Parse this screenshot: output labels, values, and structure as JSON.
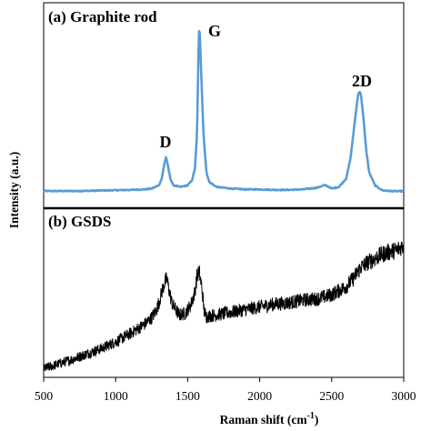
{
  "chart_data": [
    {
      "type": "line",
      "panel": "a",
      "title": "(a) Graphite rod",
      "xlabel": "Raman shift (cm",
      "xlabel_superscript": "-1",
      "xlabel_suffix": ")",
      "ylabel": "Intensity (a.u.)",
      "xlim": [
        500,
        3000
      ],
      "xticks": [
        "500",
        "1000",
        "1500",
        "2000",
        "2500",
        "3000"
      ],
      "y_ticks_shown": false,
      "color": "#5b9bd5",
      "peaks": [
        {
          "label": "D",
          "x": 1350,
          "height": 0.21
        },
        {
          "label": "G",
          "x": 1580,
          "height": 1.0
        },
        {
          "label": "2D",
          "x": 2690,
          "height": 0.61
        }
      ],
      "series": [
        {
          "x": [
            500,
            600,
            700,
            800,
            900,
            1000,
            1100,
            1200,
            1250,
            1300,
            1320,
            1340,
            1350,
            1360,
            1380,
            1400,
            1450,
            1500,
            1530,
            1550,
            1565,
            1575,
            1580,
            1585,
            1595,
            1610,
            1630,
            1650,
            1700,
            1800,
            1900,
            2000,
            2100,
            2200,
            2300,
            2400,
            2430,
            2450,
            2470,
            2500,
            2550,
            2600,
            2630,
            2650,
            2670,
            2685,
            2695,
            2705,
            2720,
            2740,
            2760,
            2800,
            2850,
            2900,
            2950,
            3000
          ],
          "y": [
            0.005,
            0.005,
            0.005,
            0.006,
            0.008,
            0.01,
            0.012,
            0.015,
            0.02,
            0.04,
            0.08,
            0.18,
            0.21,
            0.17,
            0.08,
            0.04,
            0.03,
            0.04,
            0.07,
            0.14,
            0.35,
            0.85,
            1.0,
            0.95,
            0.7,
            0.35,
            0.12,
            0.06,
            0.03,
            0.02,
            0.015,
            0.015,
            0.012,
            0.012,
            0.015,
            0.025,
            0.035,
            0.04,
            0.035,
            0.02,
            0.03,
            0.08,
            0.2,
            0.35,
            0.5,
            0.6,
            0.61,
            0.58,
            0.45,
            0.25,
            0.12,
            0.04,
            0.01,
            0.005,
            0.004,
            0.004
          ]
        }
      ]
    },
    {
      "type": "line",
      "panel": "b",
      "title": "(b) GSDS",
      "xlim": [
        500,
        3000
      ],
      "color": "#000000",
      "series": [
        {
          "x": [
            500,
            700,
            900,
            1000,
            1100,
            1200,
            1250,
            1280,
            1300,
            1320,
            1340,
            1355,
            1370,
            1390,
            1410,
            1440,
            1480,
            1520,
            1550,
            1565,
            1580,
            1600,
            1615,
            1630,
            1700,
            1800,
            1900,
            2000,
            2100,
            2200,
            2300,
            2400,
            2500,
            2550,
            2600,
            2650,
            2700,
            2750,
            2800,
            2850,
            2900,
            2950,
            3000
          ],
          "y": [
            0.03,
            0.1,
            0.18,
            0.23,
            0.29,
            0.36,
            0.41,
            0.46,
            0.52,
            0.6,
            0.67,
            0.7,
            0.62,
            0.52,
            0.48,
            0.43,
            0.44,
            0.5,
            0.6,
            0.72,
            0.75,
            0.62,
            0.45,
            0.42,
            0.43,
            0.45,
            0.47,
            0.49,
            0.51,
            0.52,
            0.54,
            0.55,
            0.58,
            0.61,
            0.64,
            0.7,
            0.78,
            0.82,
            0.85,
            0.88,
            0.9,
            0.91,
            0.95
          ]
        }
      ]
    }
  ]
}
